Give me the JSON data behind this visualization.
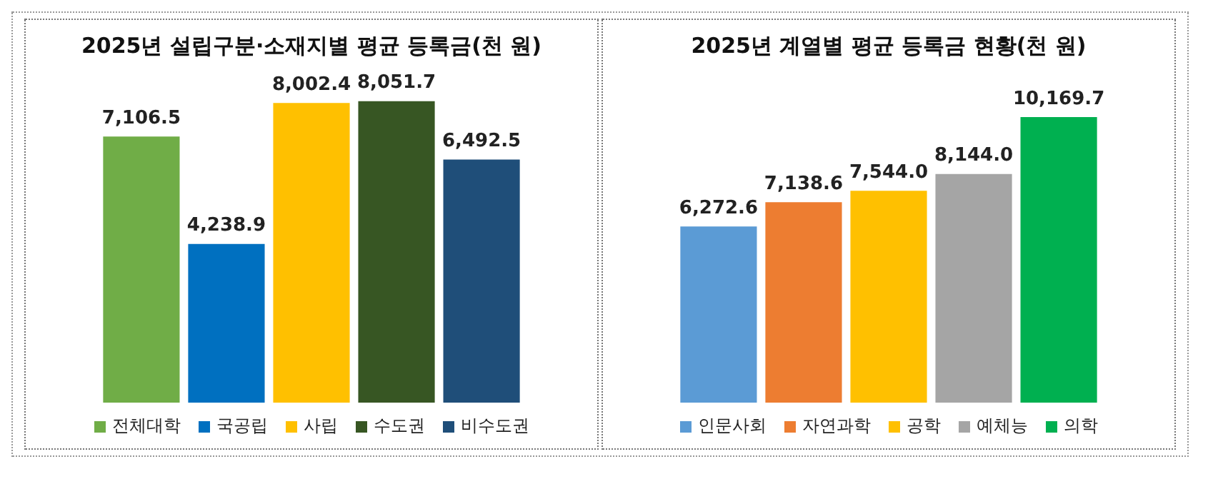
{
  "chart_data": [
    {
      "type": "bar",
      "title": "2025년 설립구분·소재지별 평균 등록금(천 원)",
      "legend": "bottom",
      "tick_labels": false,
      "categories": [
        null
      ],
      "series": [
        {
          "name": "전체대학",
          "color": "#70ad47",
          "values": [
            7106.5
          ],
          "value_labels": [
            "7,106.5"
          ]
        },
        {
          "name": "국공립",
          "color": "#0070c0",
          "values": [
            4238.9
          ],
          "value_labels": [
            "4,238.9"
          ]
        },
        {
          "name": "사립",
          "color": "#ffc000",
          "values": [
            8002.4
          ],
          "value_labels": [
            "8,002.4"
          ]
        },
        {
          "name": "수도권",
          "color": "#375623",
          "values": [
            8051.7
          ],
          "value_labels": [
            "8,051.7"
          ]
        },
        {
          "name": "비수도권",
          "color": "#1f4e79",
          "values": [
            6492.5
          ],
          "value_labels": [
            "6,492.5"
          ]
        }
      ]
    },
    {
      "type": "bar",
      "title": "2025년 계열별 평균 등록금 현황(천 원)",
      "legend": "bottom",
      "tick_labels": false,
      "categories": [
        null
      ],
      "series": [
        {
          "name": "인문사회",
          "color": "#5b9bd5",
          "values": [
            6272.6
          ],
          "value_labels": [
            "6,272.6"
          ]
        },
        {
          "name": "자연과학",
          "color": "#ed7d31",
          "values": [
            7138.6
          ],
          "value_labels": [
            "7,138.6"
          ]
        },
        {
          "name": "공학",
          "color": "#ffc000",
          "values": [
            7544.0
          ],
          "value_labels": [
            "7,544.0"
          ]
        },
        {
          "name": "예체능",
          "color": "#a5a5a5",
          "values": [
            8144.0
          ],
          "value_labels": [
            "8,144.0"
          ]
        },
        {
          "name": "의학",
          "color": "#00b050",
          "values": [
            10169.7
          ],
          "value_labels": [
            "10,169.7"
          ]
        }
      ]
    }
  ]
}
